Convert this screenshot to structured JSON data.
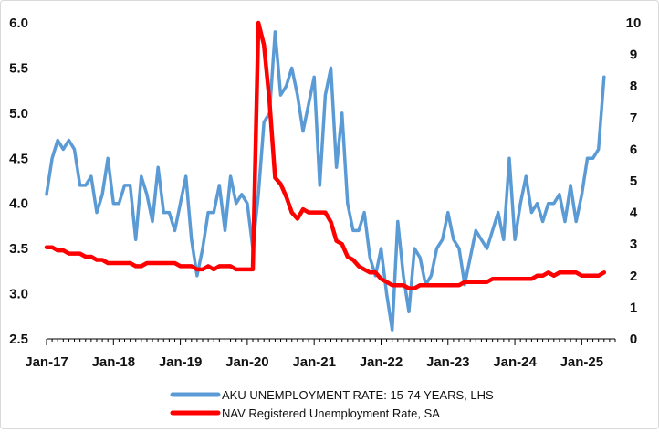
{
  "chart_data": {
    "type": "line",
    "x_tick_labels": [
      "Jan-17",
      "Jan-18",
      "Jan-19",
      "Jan-20",
      "Jan-21",
      "Jan-22",
      "Jan-23",
      "Jan-24",
      "Jan-25"
    ],
    "y_left": {
      "min": 2.5,
      "max": 6.0,
      "ticks": [
        "2.5",
        "3.0",
        "3.5",
        "4.0",
        "4.5",
        "5.0",
        "5.5",
        "6.0"
      ]
    },
    "y_right": {
      "min": 0,
      "max": 10,
      "ticks": [
        "0",
        "1",
        "2",
        "3",
        "4",
        "5",
        "6",
        "7",
        "8",
        "9",
        "10"
      ]
    },
    "grid": false,
    "legend_position": "bottom",
    "series": [
      {
        "name": "AKU UNEMPLOYMENT RATE: 15-74 YEARS, LHS",
        "axis": "left",
        "color": "#5b9bd5",
        "start": "2017-01",
        "frequency": "monthly",
        "values": [
          4.1,
          4.5,
          4.7,
          4.6,
          4.7,
          4.6,
          4.2,
          4.2,
          4.3,
          3.9,
          4.1,
          4.5,
          4.0,
          4.0,
          4.2,
          4.2,
          3.6,
          4.3,
          4.1,
          3.8,
          4.4,
          3.9,
          3.9,
          3.7,
          4.0,
          4.3,
          3.6,
          3.2,
          3.5,
          3.9,
          3.9,
          4.2,
          3.7,
          4.3,
          4.0,
          4.1,
          4.0,
          3.5,
          4.1,
          4.9,
          5.0,
          5.9,
          5.2,
          5.3,
          5.5,
          5.2,
          4.8,
          5.1,
          5.4,
          4.2,
          5.2,
          5.5,
          4.4,
          5.0,
          4.0,
          3.7,
          3.7,
          3.9,
          3.4,
          3.2,
          3.5,
          3.0,
          2.6,
          3.8,
          3.2,
          2.8,
          3.5,
          3.4,
          3.1,
          3.2,
          3.5,
          3.6,
          3.9,
          3.6,
          3.5,
          3.1,
          3.4,
          3.7,
          3.6,
          3.5,
          3.7,
          3.9,
          3.6,
          4.5,
          3.6,
          4.0,
          4.3,
          3.9,
          4.0,
          3.8,
          4.0,
          4.0,
          4.1,
          3.8,
          4.2,
          3.8,
          4.1,
          4.5,
          4.5,
          4.6,
          5.4
        ]
      },
      {
        "name": "NAV Registered Unemployment Rate, SA",
        "axis": "right",
        "color": "#ff0000",
        "start": "2017-01",
        "frequency": "monthly",
        "values": [
          2.9,
          2.9,
          2.8,
          2.8,
          2.7,
          2.7,
          2.7,
          2.6,
          2.6,
          2.5,
          2.5,
          2.4,
          2.4,
          2.4,
          2.4,
          2.4,
          2.3,
          2.3,
          2.4,
          2.4,
          2.4,
          2.4,
          2.4,
          2.4,
          2.3,
          2.3,
          2.3,
          2.2,
          2.2,
          2.3,
          2.2,
          2.3,
          2.3,
          2.3,
          2.2,
          2.2,
          2.2,
          2.2,
          10.0,
          9.3,
          7.5,
          5.1,
          4.9,
          4.5,
          4.0,
          3.8,
          4.1,
          4.0,
          4.0,
          4.0,
          4.0,
          3.7,
          3.1,
          3.0,
          2.6,
          2.5,
          2.3,
          2.2,
          2.1,
          2.1,
          1.9,
          1.8,
          1.7,
          1.7,
          1.7,
          1.6,
          1.6,
          1.7,
          1.7,
          1.7,
          1.7,
          1.7,
          1.7,
          1.7,
          1.7,
          1.8,
          1.8,
          1.8,
          1.8,
          1.8,
          1.9,
          1.9,
          1.9,
          1.9,
          1.9,
          1.9,
          1.9,
          1.9,
          2.0,
          2.0,
          2.1,
          2.0,
          2.1,
          2.1,
          2.1,
          2.1,
          2.0,
          2.0,
          2.0,
          2.0,
          2.1
        ]
      }
    ]
  }
}
